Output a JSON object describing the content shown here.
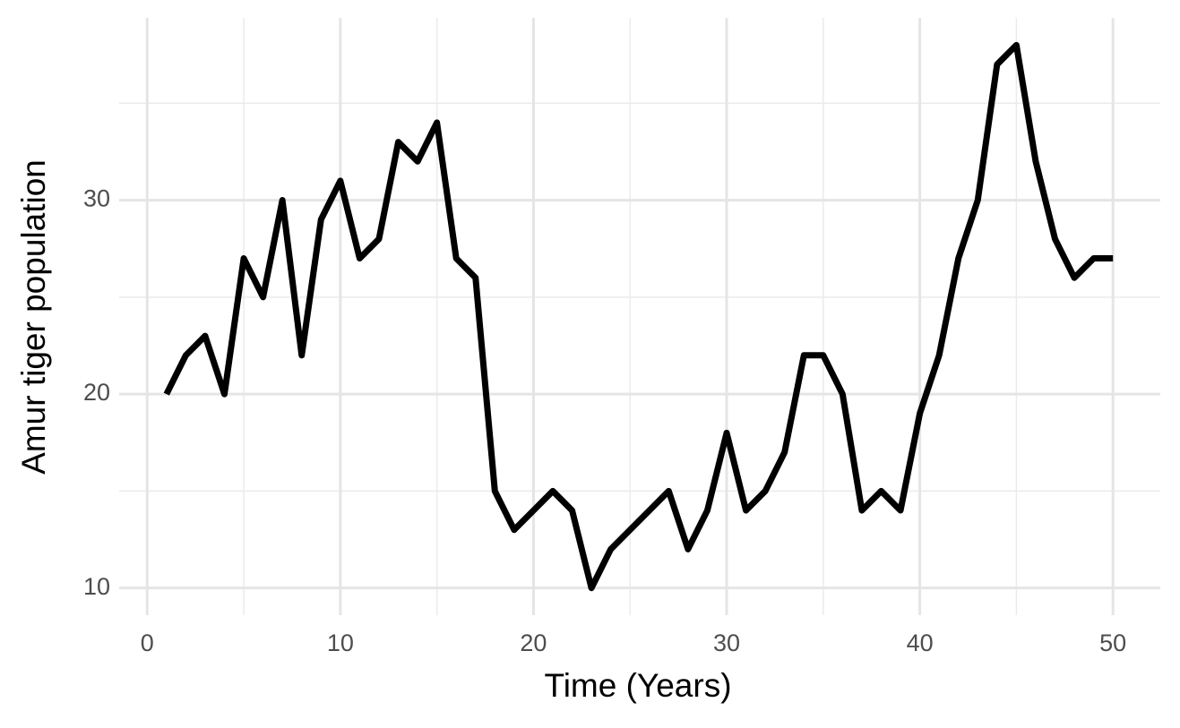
{
  "chart_data": {
    "type": "line",
    "x_label": "Time (Years)",
    "y_label": "Amur tiger population",
    "x": [
      1,
      2,
      3,
      4,
      5,
      6,
      7,
      8,
      9,
      10,
      11,
      12,
      13,
      14,
      15,
      16,
      17,
      18,
      19,
      20,
      21,
      22,
      23,
      24,
      25,
      26,
      27,
      28,
      29,
      30,
      31,
      32,
      33,
      34,
      35,
      36,
      37,
      38,
      39,
      40,
      41,
      42,
      43,
      44,
      45,
      46,
      47,
      48,
      49,
      50
    ],
    "series": [
      {
        "name": "Amur tiger population",
        "color": "#000000",
        "values": [
          20,
          22,
          23,
          20,
          27,
          25,
          30,
          22,
          29,
          31,
          27,
          28,
          33,
          32,
          34,
          27,
          26,
          15,
          13,
          14,
          15,
          14,
          10,
          12,
          13,
          14,
          15,
          12,
          14,
          18,
          14,
          15,
          17,
          22,
          22,
          20,
          14,
          15,
          14,
          19,
          22,
          27,
          30,
          37,
          38,
          32,
          28,
          26,
          27,
          27
        ]
      }
    ],
    "xlim": [
      -1.45,
      52.45
    ],
    "xticks": [
      0,
      10,
      20,
      30,
      40,
      50
    ],
    "x_minor_ticks": [
      5,
      15,
      25,
      35,
      45
    ],
    "ylim": [
      8.6,
      39.4
    ],
    "yticks": [
      10,
      20,
      30
    ],
    "y_minor_ticks": [
      15,
      25,
      35
    ],
    "grid": true
  }
}
